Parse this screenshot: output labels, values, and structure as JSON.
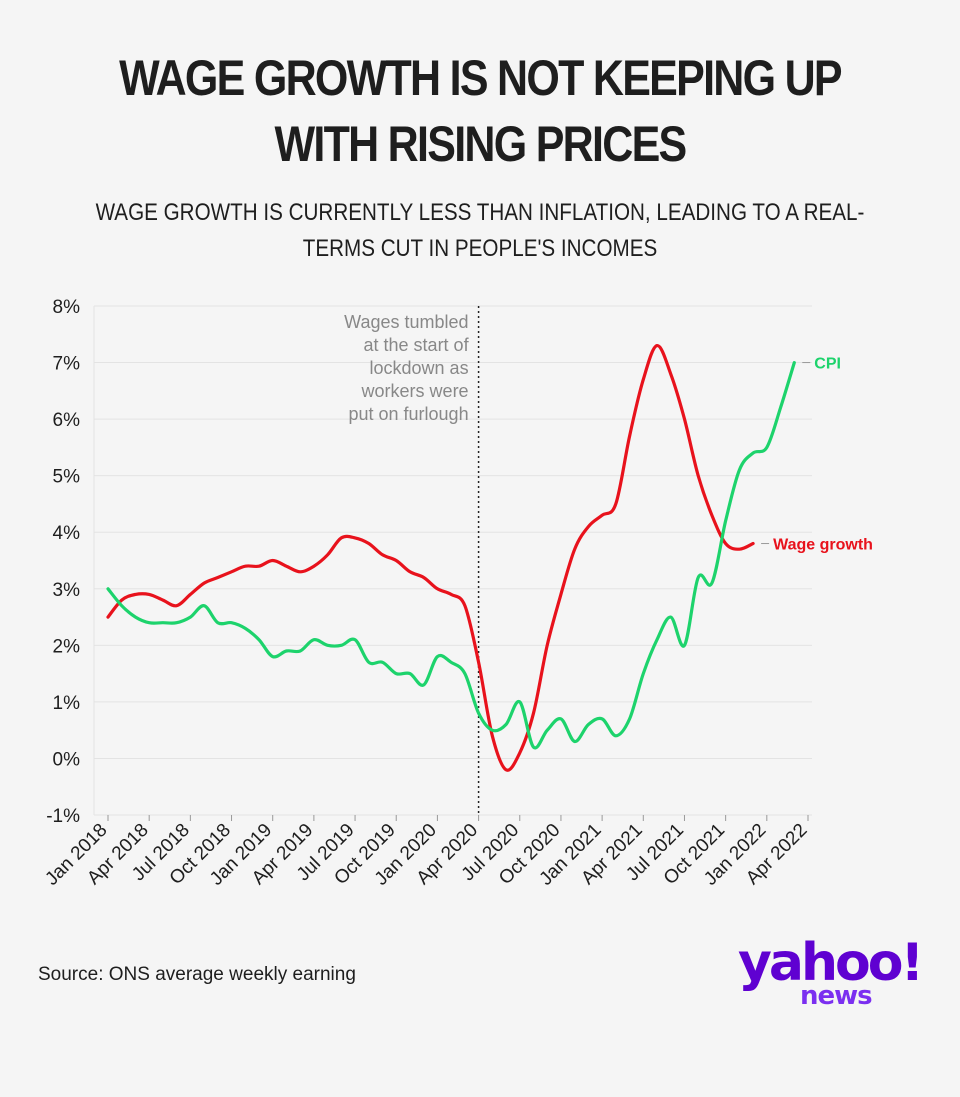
{
  "header": {
    "title": "WAGE GROWTH IS NOT KEEPING UP WITH RISING PRICES",
    "subtitle": "WAGE GROWTH IS CURRENTLY LESS THAN INFLATION, LEADING TO A REAL-TERMS CUT IN PEOPLE'S INCOMES"
  },
  "footer": {
    "source": "Source: ONS average weekly earning",
    "logo_main": "yahoo!",
    "logo_sub": "news"
  },
  "colors": {
    "wage": "#e8121c",
    "cpi": "#1dd36c",
    "logo": "#5f01d1"
  },
  "chart_data": {
    "type": "line",
    "title": "",
    "xlabel": "",
    "ylabel": "",
    "x_ticks": [
      "Jan 2018",
      "Apr 2018",
      "Jul 2018",
      "Oct 2018",
      "Jan 2019",
      "Apr 2019",
      "Jul 2019",
      "Oct 2019",
      "Jan 2020",
      "Apr 2020",
      "Jul 2020",
      "Oct 2020",
      "Jan 2021",
      "Apr 2021",
      "Jul 2021",
      "Oct 2021",
      "Jan 2022",
      "Apr 2022"
    ],
    "y_ticks": [
      "-1%",
      "0%",
      "1%",
      "2%",
      "3%",
      "4%",
      "5%",
      "6%",
      "7%",
      "8%"
    ],
    "ylim": [
      -1,
      8
    ],
    "grid": true,
    "annotation": {
      "text": [
        "Wages tumbled",
        "at the start of",
        "lockdown as",
        "workers were",
        "put on furlough"
      ],
      "at": "Apr 2020"
    },
    "series": [
      {
        "name": "Wage growth",
        "color": "#e8121c",
        "start": "Jan 2018",
        "values": [
          2.5,
          2.8,
          2.9,
          2.9,
          2.8,
          2.7,
          2.9,
          3.1,
          3.2,
          3.3,
          3.4,
          3.4,
          3.5,
          3.4,
          3.3,
          3.4,
          3.6,
          3.9,
          3.9,
          3.8,
          3.6,
          3.5,
          3.3,
          3.2,
          3.0,
          2.9,
          2.7,
          1.7,
          0.4,
          -0.2,
          0.1,
          0.8,
          2.0,
          2.9,
          3.7,
          4.1,
          4.3,
          4.5,
          5.7,
          6.7,
          7.3,
          6.8,
          6.0,
          5.0,
          4.3,
          3.8,
          3.7,
          3.8
        ]
      },
      {
        "name": "CPI",
        "color": "#1dd36c",
        "start": "Jan 2018",
        "values": [
          3.0,
          2.7,
          2.5,
          2.4,
          2.4,
          2.4,
          2.5,
          2.7,
          2.4,
          2.4,
          2.3,
          2.1,
          1.8,
          1.9,
          1.9,
          2.1,
          2.0,
          2.0,
          2.1,
          1.7,
          1.7,
          1.5,
          1.5,
          1.3,
          1.8,
          1.7,
          1.5,
          0.8,
          0.5,
          0.6,
          1.0,
          0.2,
          0.5,
          0.7,
          0.3,
          0.6,
          0.7,
          0.4,
          0.7,
          1.5,
          2.1,
          2.5,
          2.0,
          3.2,
          3.1,
          4.2,
          5.1,
          5.4,
          5.5,
          6.2,
          7.0
        ]
      }
    ]
  }
}
